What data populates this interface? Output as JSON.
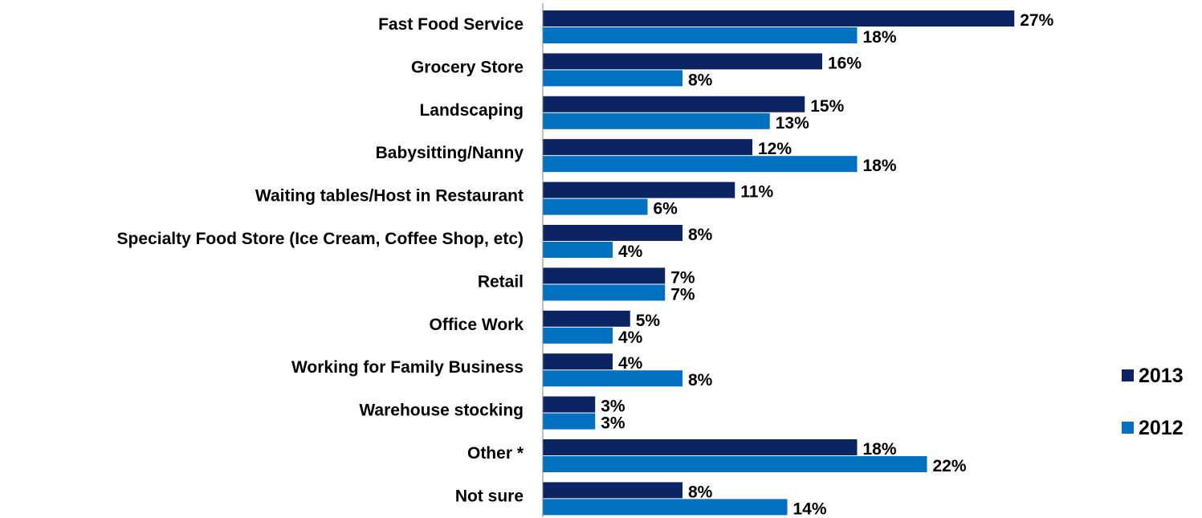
{
  "chart_data": {
    "type": "bar",
    "orientation": "horizontal",
    "categories": [
      "Fast Food Service",
      "Grocery Store",
      "Landscaping",
      "Babysitting/Nanny",
      "Waiting tables/Host in Restaurant",
      "Specialty Food Store (Ice Cream, Coffee Shop, etc)",
      "Retail",
      "Office Work",
      "Working for Family Business",
      "Warehouse stocking",
      "Other *",
      "Not sure"
    ],
    "series": [
      {
        "name": "2013",
        "color": "#0c2461",
        "values": [
          27,
          16,
          15,
          12,
          11,
          8,
          7,
          5,
          4,
          3,
          18,
          8
        ]
      },
      {
        "name": "2012",
        "color": "#0070c0",
        "values": [
          18,
          8,
          13,
          18,
          6,
          4,
          7,
          4,
          8,
          3,
          22,
          14
        ]
      }
    ],
    "value_suffix": "%",
    "xlim": [
      0,
      30
    ],
    "grid": false,
    "legend_position": "right"
  }
}
